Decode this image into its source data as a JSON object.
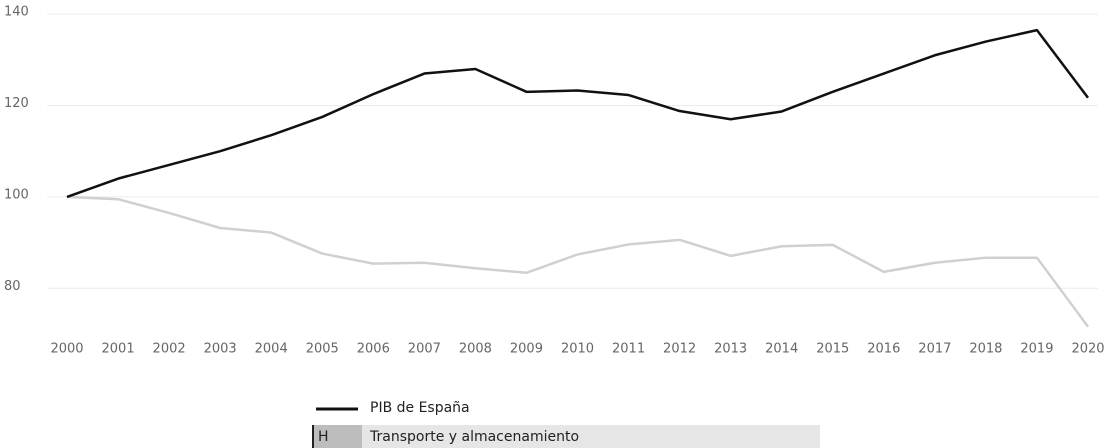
{
  "chart_data": {
    "type": "line",
    "x": [
      "2000",
      "2001",
      "2002",
      "2003",
      "2004",
      "2005",
      "2006",
      "2007",
      "2008",
      "2009",
      "2010",
      "2011",
      "2012",
      "2013",
      "2014",
      "2015",
      "2016",
      "2017",
      "2018",
      "2019",
      "2020"
    ],
    "series": [
      {
        "name": "PIB de España",
        "color": "#111111",
        "values": [
          100,
          104,
          107,
          110,
          113.5,
          117.5,
          122.5,
          127,
          128,
          123,
          123.3,
          122.3,
          118.8,
          117,
          118.7,
          123,
          127,
          131,
          134,
          136.5,
          121.7
        ]
      },
      {
        "name": "Transporte y almacenamiento",
        "marker_label": "H",
        "color": "#d0d0d0",
        "values": [
          100,
          99.5,
          96.5,
          93.2,
          92.2,
          87.6,
          85.4,
          85.6,
          84.4,
          83.4,
          87.4,
          89.6,
          90.6,
          87.1,
          89.2,
          89.5,
          83.6,
          85.6,
          86.7,
          86.7,
          71.6
        ]
      }
    ],
    "ylim": [
      70,
      142
    ],
    "yticks": [
      80,
      100,
      120,
      140
    ],
    "grid": true
  }
}
